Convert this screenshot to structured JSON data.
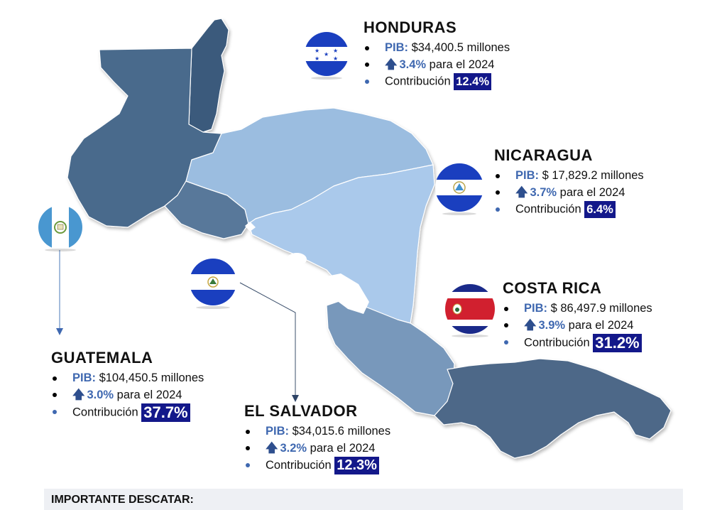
{
  "map": {
    "countries": [
      {
        "name": "Belize",
        "color": "#3b5a7c"
      },
      {
        "name": "Guatemala",
        "color": "#4a6a8c"
      },
      {
        "name": "Honduras",
        "color": "#9bbde0"
      },
      {
        "name": "El Salvador",
        "color": "#59789a"
      },
      {
        "name": "Nicaragua",
        "color": "#aac9eb"
      },
      {
        "name": "Costa Rica",
        "color": "#7898bb"
      },
      {
        "name": "Panama",
        "color": "#4d6888"
      }
    ]
  },
  "countries": {
    "honduras": {
      "title": "HONDURAS",
      "pib_label": "PIB:",
      "pib_value": " $34,400.5 millones",
      "growth_value": "3.4%",
      "growth_text": " para el 2024",
      "contrib_label": "Contribución ",
      "contrib_value": "12.4%"
    },
    "nicaragua": {
      "title": "NICARAGUA",
      "pib_label": "PIB:",
      "pib_value": " $ 17,829.2 millones",
      "growth_value": "3.7%",
      "growth_text": " para el 2024",
      "contrib_label": "Contribución ",
      "contrib_value": "6.4%"
    },
    "costa_rica": {
      "title": "COSTA RICA",
      "pib_label": "PIB:",
      "pib_value": " $ 86,497.9 millones",
      "growth_value": "3.9%",
      "growth_text": " para el 2024",
      "contrib_label": "Contribución ",
      "contrib_value": "31.2%"
    },
    "guatemala": {
      "title": "GUATEMALA",
      "pib_label": "PIB:",
      "pib_value": " $104,450.5 millones",
      "growth_value": "3.0%",
      "growth_text": " para el 2024",
      "contrib_label": "Contribución ",
      "contrib_value": "37.7%"
    },
    "el_salvador": {
      "title": "EL SALVADOR",
      "pib_label": "PIB:",
      "pib_value": " $34,015.6 millones",
      "growth_value": "3.2%",
      "growth_text": " para el 2024",
      "contrib_label": "Contribución ",
      "contrib_value": "12.3%"
    }
  },
  "flags": {
    "blue": "#1a3fbf",
    "costa_rica_red": "#d1202f",
    "costa_rica_blue": "#1a2a8a",
    "guatemala_blue": "#4997d0"
  },
  "importante": {
    "title": "IMPORTANTE DESCATAR:"
  }
}
